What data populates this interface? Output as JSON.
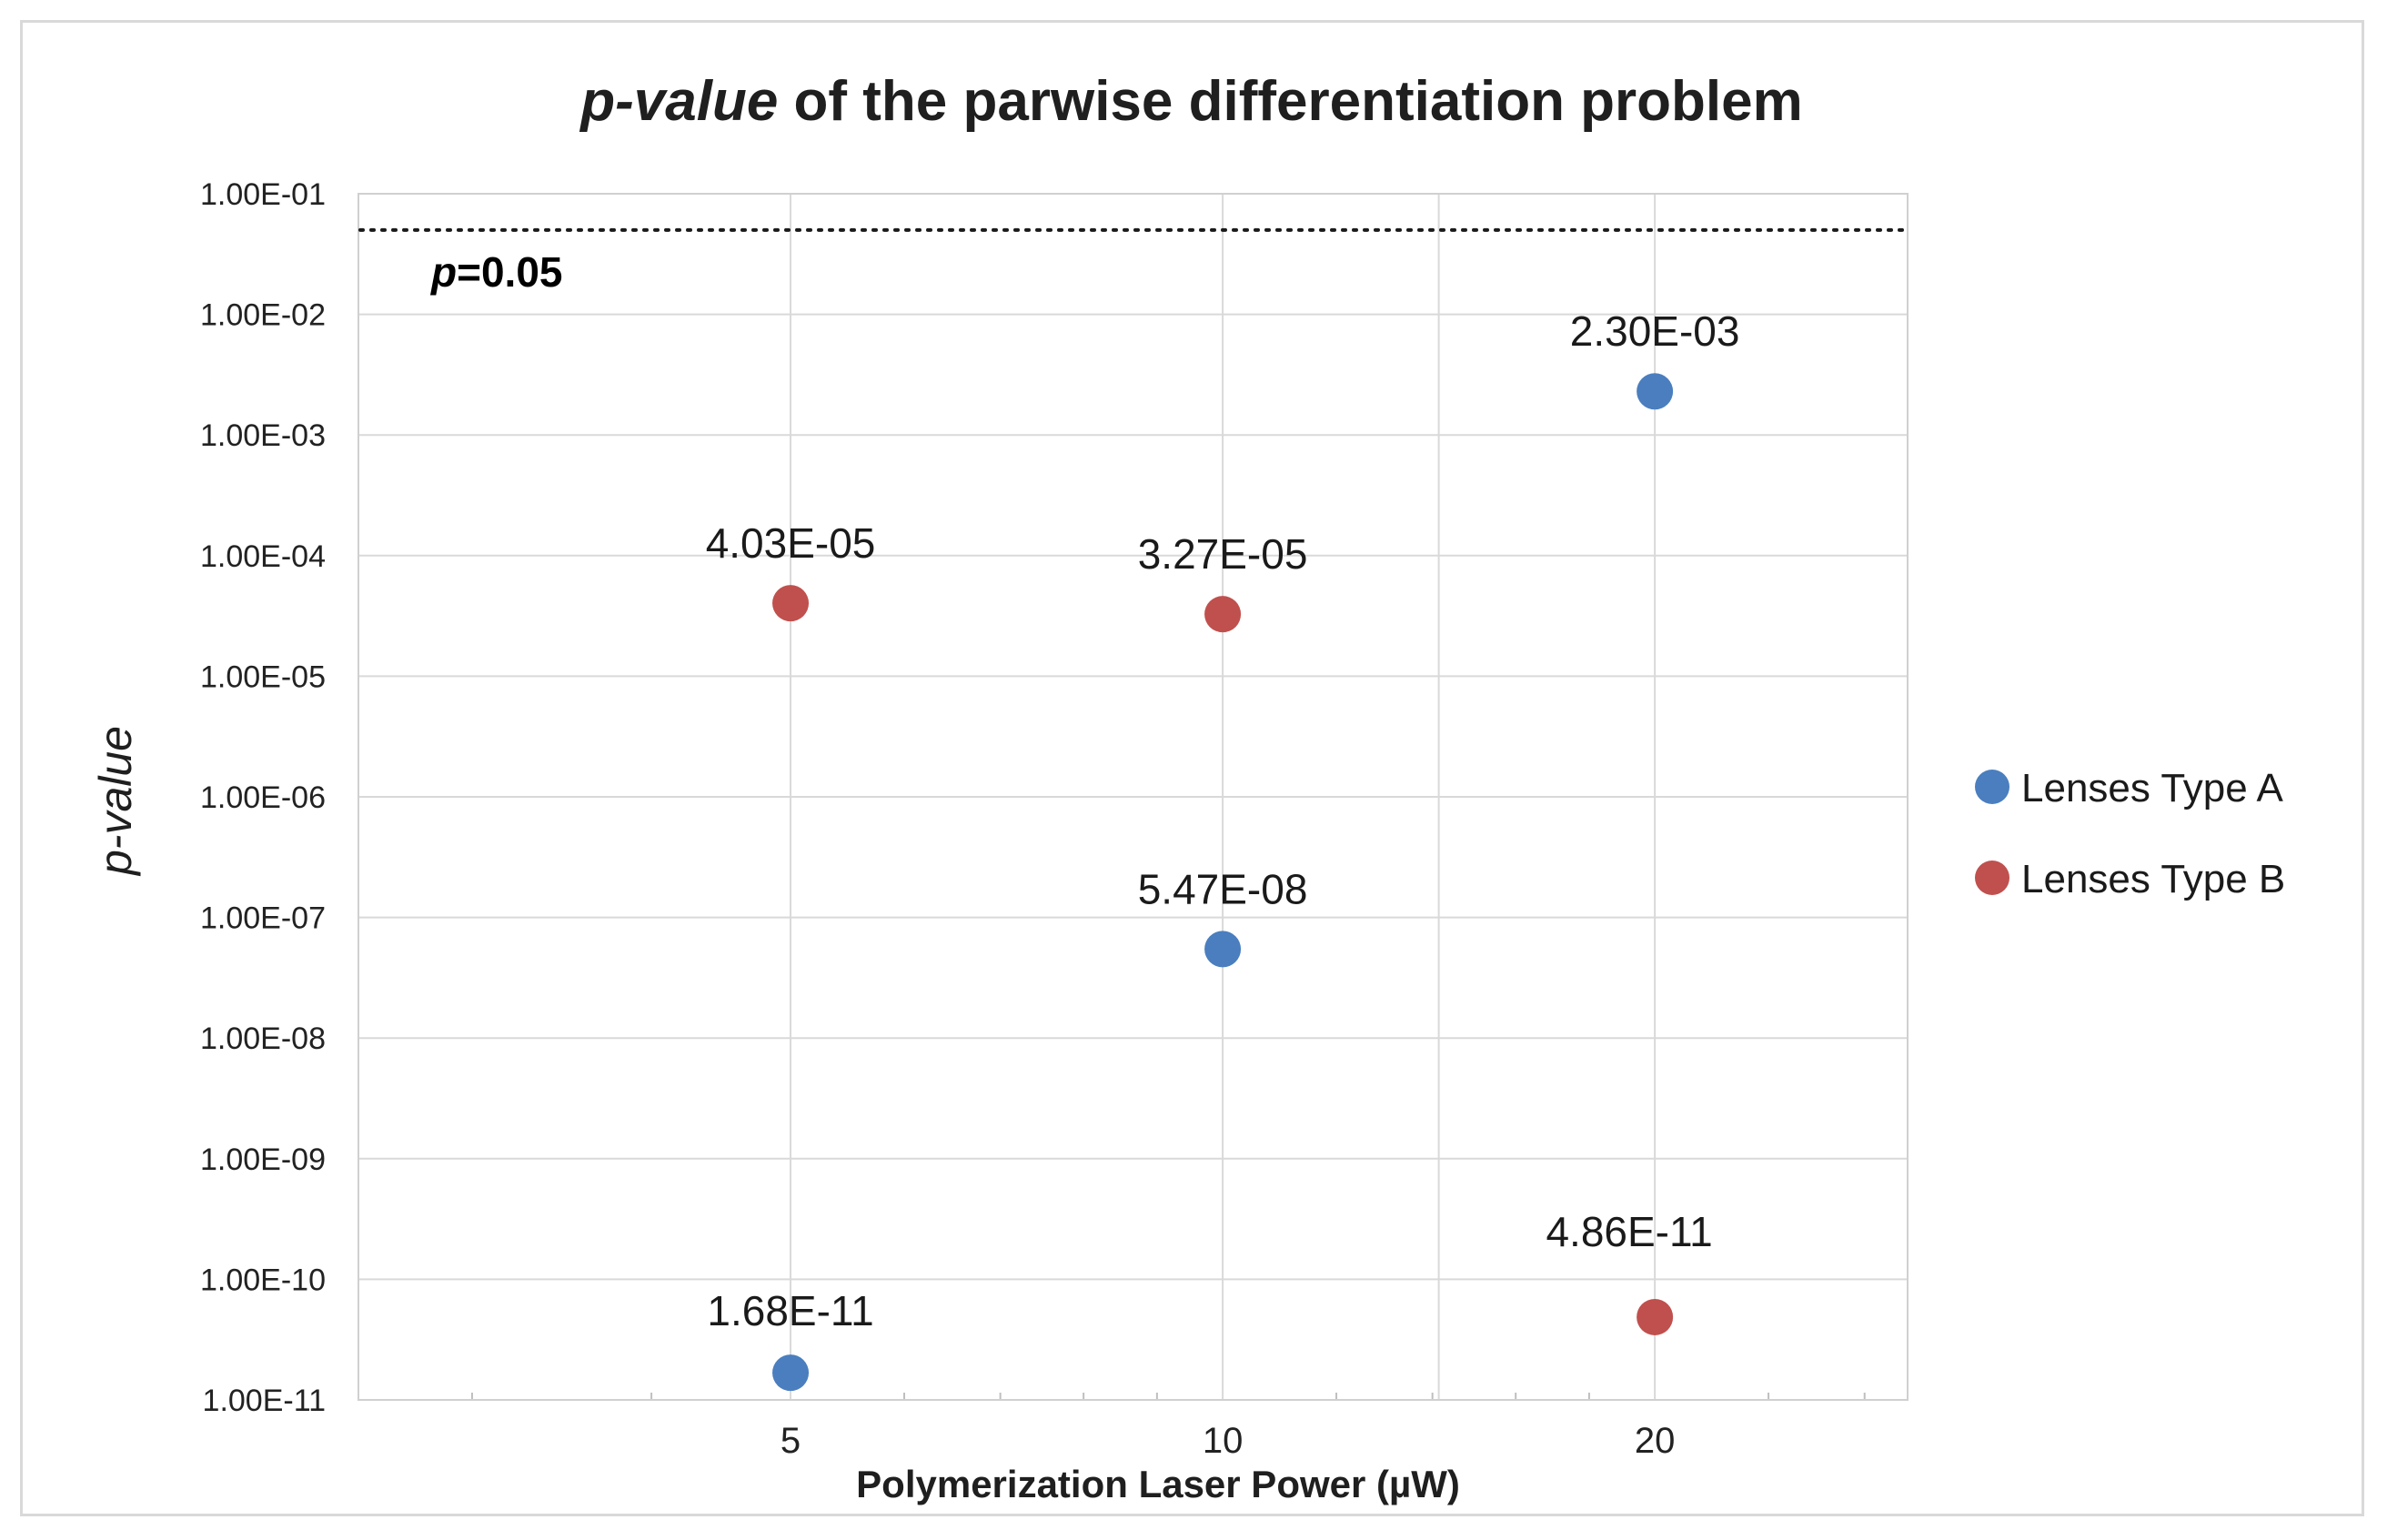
{
  "chart_data": {
    "type": "scatter",
    "title": {
      "italic_part": "p-value",
      "rest": " of the parwise differentiation problem"
    },
    "xlabel": "Polymerization Laser Power (µW)",
    "ylabel": "p-value",
    "x_scale": "log",
    "y_scale": "log",
    "xlim": [
      2.5,
      30
    ],
    "ylim": [
      1e-11,
      0.1
    ],
    "x_ticks": [
      {
        "value": 5,
        "label": "5"
      },
      {
        "value": 10,
        "label": "10"
      },
      {
        "value": 20,
        "label": "20"
      }
    ],
    "y_ticks": [
      {
        "value": 0.1,
        "label": "1.00E-01"
      },
      {
        "value": 0.01,
        "label": "1.00E-02"
      },
      {
        "value": 0.001,
        "label": "1.00E-03"
      },
      {
        "value": 0.0001,
        "label": "1.00E-04"
      },
      {
        "value": 1e-05,
        "label": "1.00E-05"
      },
      {
        "value": 1e-06,
        "label": "1.00E-06"
      },
      {
        "value": 1e-07,
        "label": "1.00E-07"
      },
      {
        "value": 1e-08,
        "label": "1.00E-08"
      },
      {
        "value": 1e-09,
        "label": "1.00E-09"
      },
      {
        "value": 1e-10,
        "label": "1.00E-10"
      },
      {
        "value": 1e-11,
        "label": "1.00E-11"
      }
    ],
    "grid": true,
    "threshold": {
      "value": 0.05,
      "label_italic": "p",
      "label_rest": "=0.05",
      "style": "dotted"
    },
    "legend_position": "right",
    "series": [
      {
        "name": "Lenses Type A",
        "color": "#4a7ebf",
        "points": [
          {
            "x": 5,
            "y": 1.68e-11,
            "label": "1.68E-11"
          },
          {
            "x": 10,
            "y": 5.47e-08,
            "label": "5.47E-08"
          },
          {
            "x": 20,
            "y": 0.0023,
            "label": "2.30E-03"
          }
        ]
      },
      {
        "name": "Lenses Type B",
        "color": "#c0504d",
        "points": [
          {
            "x": 5,
            "y": 4.03e-05,
            "label": "4.03E-05"
          },
          {
            "x": 10,
            "y": 3.27e-05,
            "label": "3.27E-05"
          },
          {
            "x": 20,
            "y": 4.86e-11,
            "label": "4.86E-11"
          }
        ]
      }
    ]
  }
}
